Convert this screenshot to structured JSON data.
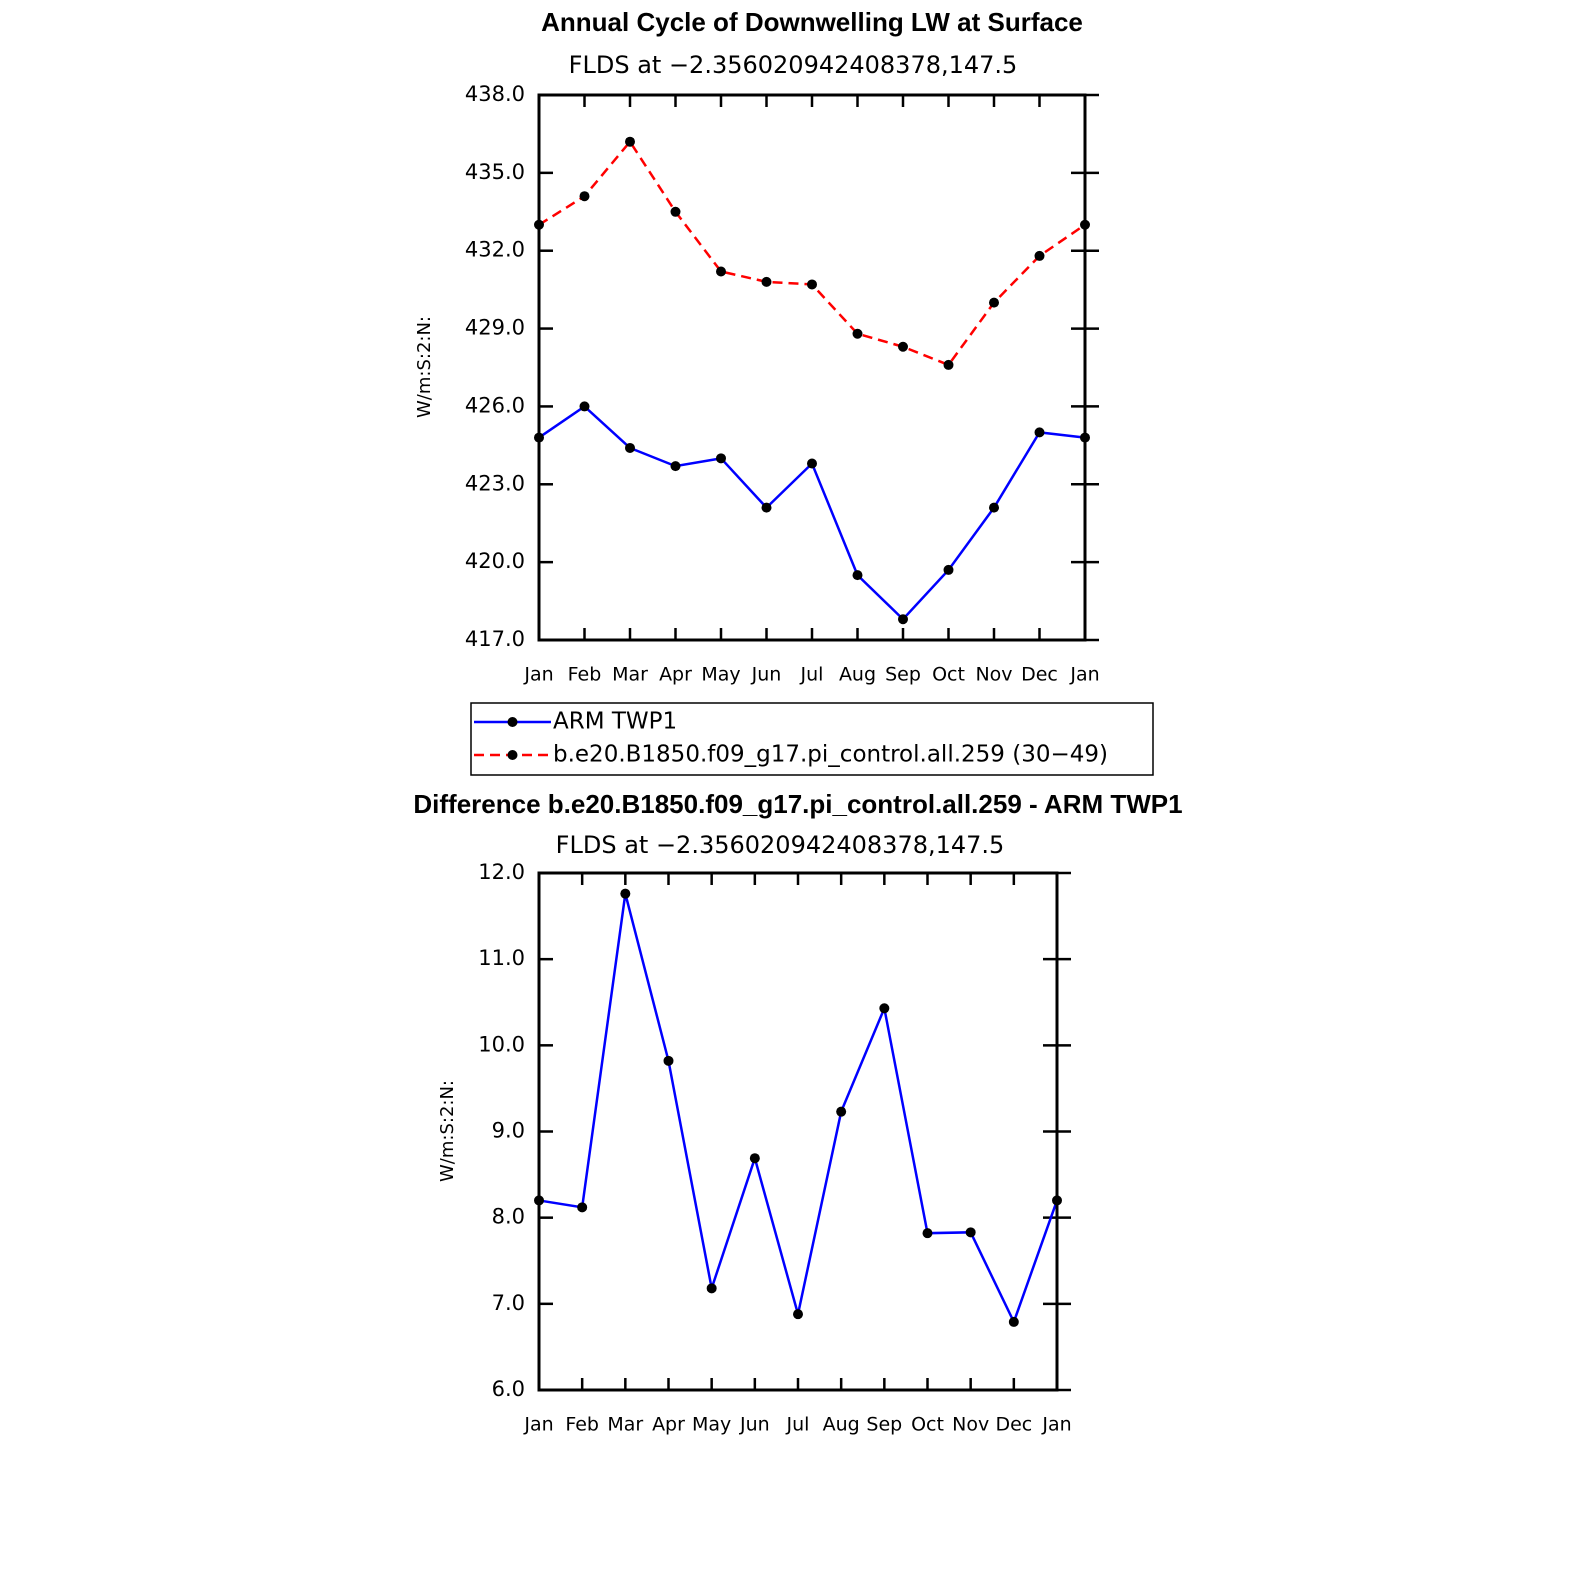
{
  "chart_data": [
    {
      "type": "line",
      "title": "Annual Cycle of Downwelling LW at Surface",
      "subtitle": "FLDS at −2.356020942408378,147.5",
      "y_label": "W/m:S:2:N:",
      "categories": [
        "Jan",
        "Feb",
        "Mar",
        "Apr",
        "May",
        "Jun",
        "Jul",
        "Aug",
        "Sep",
        "Oct",
        "Nov",
        "Dec",
        "Jan"
      ],
      "series": [
        {
          "name": "ARM  TWP1",
          "color": "#0000ff",
          "line_style": "solid",
          "values": [
            424.8,
            426.0,
            424.4,
            423.7,
            424.0,
            422.1,
            423.8,
            419.5,
            417.8,
            419.7,
            422.1,
            425.0,
            424.8
          ]
        },
        {
          "name": "b.e20.B1850.f09_g17.pi_control.all.259 (30−49)",
          "color": "#ff0000",
          "line_style": "dashed",
          "values": [
            433.0,
            434.1,
            436.2,
            433.5,
            431.2,
            430.8,
            430.7,
            428.8,
            428.3,
            427.6,
            430.0,
            431.8,
            433.0
          ]
        }
      ],
      "ylim": [
        417,
        438
      ],
      "yticks": [
        {
          "value": 417,
          "label": "417.0"
        },
        {
          "value": 420,
          "label": "420.0"
        },
        {
          "value": 423,
          "label": "423.0"
        },
        {
          "value": 426,
          "label": "426.0"
        },
        {
          "value": 429,
          "label": "429.0"
        },
        {
          "value": 432,
          "label": "432.0"
        },
        {
          "value": 435,
          "label": "435.0"
        },
        {
          "value": 438,
          "label": "438.0"
        }
      ]
    },
    {
      "type": "line",
      "title": "Difference b.e20.B1850.f09_g17.pi_control.all.259 - ARM TWP1",
      "subtitle": "FLDS at −2.356020942408378,147.5",
      "y_label": "W/m:S:2:N:",
      "categories": [
        "Jan",
        "Feb",
        "Mar",
        "Apr",
        "May",
        "Jun",
        "Jul",
        "Aug",
        "Sep",
        "Oct",
        "Nov",
        "Dec",
        "Jan"
      ],
      "color": "#0000ff",
      "values": [
        8.2,
        8.12,
        11.76,
        9.82,
        7.18,
        8.69,
        6.88,
        9.23,
        10.43,
        7.82,
        7.83,
        6.79,
        8.2
      ],
      "ylim": [
        6,
        12
      ],
      "yticks": [
        {
          "value": 6,
          "label": "6.0"
        },
        {
          "value": 7,
          "label": "7.0"
        },
        {
          "value": 8,
          "label": "8.0"
        },
        {
          "value": 9,
          "label": "9.0"
        },
        {
          "value": 10,
          "label": "10.0"
        },
        {
          "value": 11,
          "label": "11.0"
        },
        {
          "value": 12,
          "label": "12.0"
        }
      ]
    }
  ]
}
